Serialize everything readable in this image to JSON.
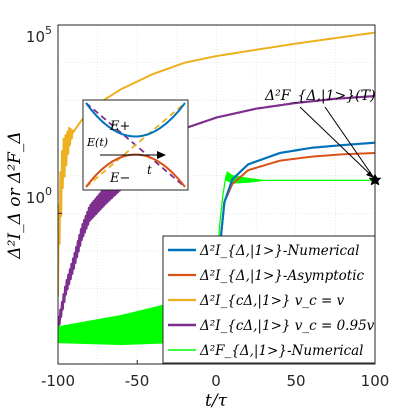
{
  "chart_data": {
    "type": "line",
    "xlabel": "t/τ",
    "ylabel": "Δ²I_Δ or Δ²F_Δ",
    "xlim": [
      -100,
      100
    ],
    "ylim_log10": [
      -4,
      5
    ],
    "log_y": true,
    "grid": true,
    "x_ticks": [
      "-100",
      "-50",
      "0",
      "50",
      "100"
    ],
    "y_ticks": [
      {
        "base": "10",
        "exp": "5",
        "value": 100000
      },
      {
        "base": "10",
        "exp": "0",
        "value": 1
      }
    ],
    "legend_position": "bottom-right",
    "series": [
      {
        "name": "Δ²I_{Δ,|1>}-Numerical",
        "color": "#0072BD",
        "points": [
          [
            -0.3,
            0.0003
          ],
          [
            0,
            0.003
          ],
          [
            3,
            0.3
          ],
          [
            5,
            2
          ],
          [
            10,
            8
          ],
          [
            20,
            20
          ],
          [
            40,
            40
          ],
          [
            60,
            55
          ],
          [
            80,
            65
          ],
          [
            100,
            75
          ]
        ]
      },
      {
        "name": "Δ²I_{Δ,|1>}-Asymptotic",
        "color": "#D95319",
        "points": [
          [
            -0.3,
            0.0003
          ],
          [
            0,
            0.003
          ],
          [
            3,
            0.3
          ],
          [
            5,
            2
          ],
          [
            10,
            6
          ],
          [
            20,
            14
          ],
          [
            40,
            25
          ],
          [
            60,
            32
          ],
          [
            80,
            37
          ],
          [
            100,
            40
          ]
        ]
      },
      {
        "name": "Δ²I_{cΔ,|1>}  v_c = v",
        "color": "#EDB120",
        "points": [
          [
            -100,
            0.05
          ],
          [
            -99,
            1
          ],
          [
            -97,
            20
          ],
          [
            -93,
            100
          ],
          [
            -85,
            300
          ],
          [
            -75,
            800
          ],
          [
            -60,
            2000
          ],
          [
            -40,
            5000
          ],
          [
            -20,
            10000
          ],
          [
            0,
            15000
          ],
          [
            25,
            22000
          ],
          [
            50,
            32000
          ],
          [
            75,
            45000
          ],
          [
            100,
            63000
          ]
        ]
      },
      {
        "name": "Δ²I_{cΔ,|1>}  v_c = 0.95v",
        "color": "#7E2F8E",
        "points": [
          [
            -100,
            0.001
          ],
          [
            -95,
            0.01
          ],
          [
            -90,
            0.05
          ],
          [
            -85,
            0.3
          ],
          [
            -80,
            1
          ],
          [
            -70,
            3
          ],
          [
            -60,
            8
          ],
          [
            -50,
            20
          ],
          [
            -40,
            50
          ],
          [
            -30,
            100
          ],
          [
            -20,
            180
          ],
          [
            0,
            350
          ],
          [
            25,
            600
          ],
          [
            50,
            850
          ],
          [
            75,
            1100
          ],
          [
            100,
            1300
          ]
        ]
      },
      {
        "name": "Δ²F_{Δ,|1>}-Numerical",
        "color": "#00FF00",
        "points": [
          [
            -100,
            0.0006
          ],
          [
            -60,
            0.0008
          ],
          [
            -30,
            0.0012
          ],
          [
            -10,
            0.0025
          ],
          [
            -5,
            0.004
          ],
          [
            0,
            0.03
          ],
          [
            2,
            0.5
          ],
          [
            4,
            3
          ],
          [
            6,
            10
          ],
          [
            10,
            8
          ],
          [
            20,
            7.5
          ],
          [
            60,
            7.5
          ],
          [
            100,
            7.5
          ]
        ]
      }
    ],
    "annotations": [
      {
        "text": "Δ²F_{Δ,|1>}(T)",
        "x": 100,
        "y": 7.5
      }
    ],
    "inset": {
      "labels": [
        "E+",
        "E−",
        "E(t)",
        "t"
      ]
    }
  }
}
